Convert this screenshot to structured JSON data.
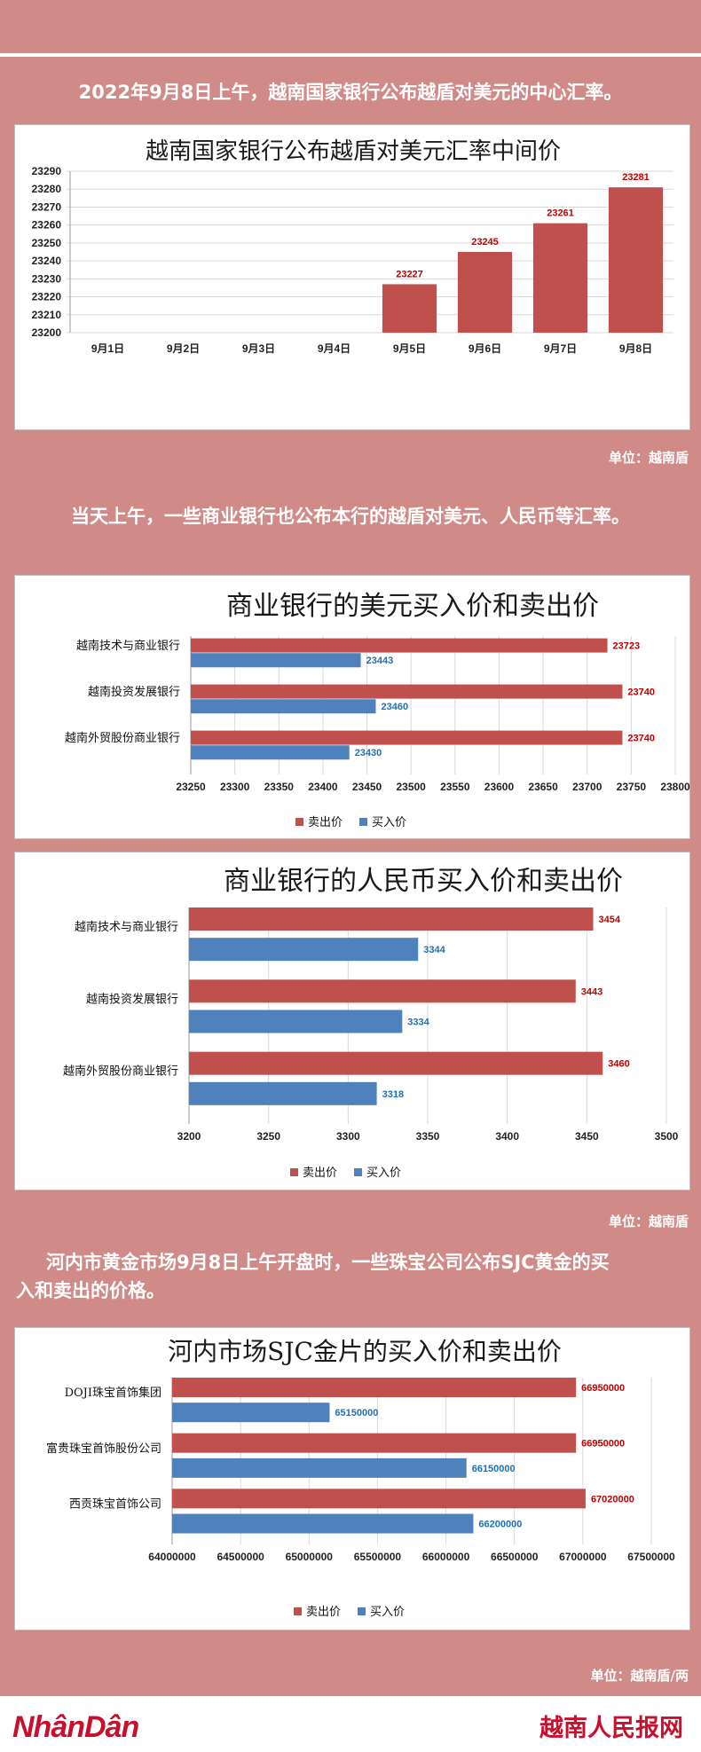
{
  "intro1": "2022年9月8日上午，越南国家银行公布越盾对美元的中心汇率。",
  "intro2": "当天上午，一些商业银行也公布本行的越盾对美元、人民币等汇率。",
  "intro3_line1": "河内市黄金市场9月8日上午开盘时，一些珠宝公司公布SJC黄金的买",
  "intro3_line2": "入和卖出的价格。",
  "unit1": "单位：越南盾",
  "unit2": "单位：越南盾",
  "unit3": "单位：越南盾/两",
  "footer": {
    "logo": "NhânDân",
    "site": "越南人民报网"
  },
  "colors": {
    "sell": "#c0504d",
    "buy": "#4f81bd",
    "sell_label": "#c00000",
    "buy_label": "#1f6fb5",
    "background": "#d08a87"
  },
  "chart_data": [
    {
      "type": "bar",
      "title": "越南国家银行公布越盾对美元汇率中间价",
      "categories": [
        "9月1日",
        "9月2日",
        "9月3日",
        "9月4日",
        "9月5日",
        "9月6日",
        "9月7日",
        "9月8日"
      ],
      "values": [
        null,
        null,
        null,
        null,
        23227,
        23245,
        23261,
        23281
      ],
      "ylim": [
        23200,
        23290
      ],
      "yticks": [
        "23200",
        "23210",
        "23220",
        "23230",
        "23240",
        "23250",
        "23260",
        "23270",
        "23280",
        "23290"
      ],
      "grid": true
    },
    {
      "type": "bar",
      "orientation": "horizontal",
      "title": "商业银行的美元买入价和卖出价",
      "categories": [
        "越南技术与商业银行",
        "越南投资发展银行",
        "越南外贸股份商业银行"
      ],
      "series": [
        {
          "name": "卖出价",
          "values": [
            23723,
            23740,
            23740
          ]
        },
        {
          "name": "买入价",
          "values": [
            23443,
            23460,
            23430
          ]
        }
      ],
      "xlim": [
        23250,
        23800
      ],
      "xticks": [
        "23250",
        "23300",
        "23350",
        "23400",
        "23450",
        "23500",
        "23550",
        "23600",
        "23650",
        "23700",
        "23750",
        "23800"
      ],
      "legend": "bottom",
      "grid": true
    },
    {
      "type": "bar",
      "orientation": "horizontal",
      "title": "商业银行的人民币买入价和卖出价",
      "categories": [
        "越南技术与商业银行",
        "越南投资发展银行",
        "越南外贸股份商业银行"
      ],
      "series": [
        {
          "name": "卖出价",
          "values": [
            3454,
            3443,
            3460
          ]
        },
        {
          "name": "买入价",
          "values": [
            3344,
            3334,
            3318
          ]
        }
      ],
      "xlim": [
        3200,
        3500
      ],
      "xticks": [
        "3200",
        "3250",
        "3300",
        "3350",
        "3400",
        "3450",
        "3500"
      ],
      "legend": "bottom",
      "grid": true
    },
    {
      "type": "bar",
      "orientation": "horizontal",
      "title": "河内市场SJC金片的买入价和卖出价",
      "categories": [
        "DOJI珠宝首饰集团",
        "富贵珠宝首饰股份公司",
        "西贡珠宝首饰公司"
      ],
      "series": [
        {
          "name": "卖出价",
          "values": [
            66950000,
            66950000,
            67020000
          ]
        },
        {
          "name": "买入价",
          "values": [
            65150000,
            66150000,
            66200000
          ]
        }
      ],
      "xlim": [
        64000000,
        67500000
      ],
      "xticks": [
        "64000000",
        "64500000",
        "65000000",
        "65500000",
        "66000000",
        "66500000",
        "67000000",
        "67500000"
      ],
      "legend": "bottom",
      "grid": true
    }
  ]
}
